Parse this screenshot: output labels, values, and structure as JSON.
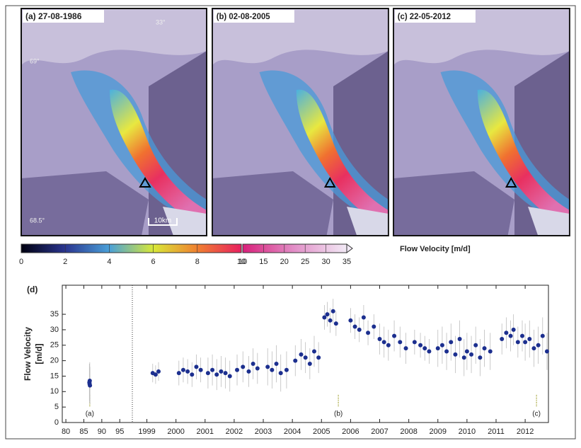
{
  "panels": [
    {
      "label": "(a) 27-08-1986",
      "lon": "33°",
      "lat_top": "69°",
      "lat_bottom": "68.5°",
      "scale": "10km"
    },
    {
      "label": "(b) 02-08-2005"
    },
    {
      "label": "(c) 22-05-2012"
    }
  ],
  "colorbar": {
    "label": "Flow Velocity [m/d]",
    "lim_low": [
      0,
      10
    ],
    "ticks_low": [
      0,
      2,
      4,
      6,
      8,
      10
    ],
    "lim_high": [
      10,
      35
    ],
    "ticks_high": [
      10,
      15,
      20,
      25,
      30,
      35
    ]
  },
  "chart_data": {
    "type": "scatter",
    "panel_label": "(d)",
    "ylabel": [
      "Flow Velocity",
      "[m/d]"
    ],
    "color": "#1c2f8f",
    "error_color": "#bdbdbd",
    "xlim": [
      1979,
      2012.8
    ],
    "xbreak": 1998.5,
    "ylim": [
      0,
      44.4
    ],
    "xticks": [
      {
        "value": 1980,
        "label": "80"
      },
      {
        "value": 1985,
        "label": "85"
      },
      {
        "value": 1990,
        "label": "90"
      },
      {
        "value": 1995,
        "label": "95"
      },
      1999,
      2000,
      2001,
      2002,
      2003,
      2004,
      2005,
      2006,
      2007,
      2008,
      2009,
      2010,
      2011,
      2012
    ],
    "yticks": [
      0,
      5,
      10,
      15,
      20,
      25,
      30,
      35
    ],
    "x": [
      1986.55,
      1986.6,
      1986.65,
      1986.7,
      1999.2,
      1999.3,
      1999.4,
      2000.1,
      2000.25,
      2000.4,
      2000.55,
      2000.7,
      2000.85,
      2001.1,
      2001.25,
      2001.4,
      2001.55,
      2001.7,
      2001.85,
      2002.1,
      2002.3,
      2002.5,
      2002.65,
      2002.8,
      2003.15,
      2003.3,
      2003.45,
      2003.6,
      2003.8,
      2004.1,
      2004.3,
      2004.45,
      2004.6,
      2004.75,
      2004.9,
      2005.1,
      2005.2,
      2005.3,
      2005.4,
      2005.5,
      2006.0,
      2006.15,
      2006.3,
      2006.45,
      2006.6,
      2006.8,
      2007.0,
      2007.15,
      2007.3,
      2007.5,
      2007.7,
      2007.9,
      2008.2,
      2008.4,
      2008.55,
      2008.7,
      2009.0,
      2009.15,
      2009.3,
      2009.45,
      2009.6,
      2009.75,
      2009.9,
      2010.0,
      2010.15,
      2010.3,
      2010.45,
      2010.6,
      2010.8,
      2011.2,
      2011.35,
      2011.5,
      2011.6,
      2011.75,
      2011.9,
      2012.0,
      2012.15,
      2012.3,
      2012.45,
      2012.6,
      2012.75
    ],
    "values": [
      13,
      12.5,
      13.5,
      12,
      16,
      15.5,
      16.5,
      16,
      17,
      16.5,
      15.5,
      18,
      17,
      16,
      17,
      15.5,
      16.5,
      16,
      15,
      17,
      18,
      16.5,
      19,
      17.5,
      18,
      17,
      19,
      16,
      17,
      20,
      22,
      21,
      19,
      23,
      21,
      34,
      35,
      33,
      36,
      32,
      33,
      31,
      30,
      34,
      29,
      31,
      27,
      26,
      25,
      28,
      26,
      24,
      26,
      25,
      24,
      23,
      24,
      25,
      23,
      26,
      22,
      27,
      21,
      23,
      22,
      25,
      21,
      24,
      23,
      27,
      29,
      28,
      30,
      26,
      28,
      26,
      27,
      24,
      25,
      28,
      23
    ],
    "yerr": [
      6,
      6,
      6,
      6,
      3,
      3,
      3,
      4,
      4,
      4,
      4,
      4,
      4,
      5,
      5,
      5,
      5,
      5,
      5,
      5,
      5,
      5,
      5,
      5,
      6,
      6,
      6,
      6,
      6,
      5,
      5,
      5,
      5,
      5,
      5,
      4,
      4,
      4,
      4,
      4,
      4,
      4,
      4,
      4,
      4,
      4,
      5,
      5,
      5,
      5,
      5,
      5,
      4,
      4,
      4,
      4,
      6,
      6,
      6,
      6,
      6,
      6,
      6,
      6,
      6,
      6,
      6,
      6,
      6,
      5,
      5,
      5,
      5,
      5,
      5,
      6,
      6,
      6,
      6,
      6,
      6
    ],
    "annotations": [
      {
        "text": "(a)",
        "x": 1986.65
      },
      {
        "text": "(b)",
        "x": 2005.58
      },
      {
        "text": "(c)",
        "x": 2012.39
      }
    ],
    "annotation_color": "#9a9a20"
  }
}
